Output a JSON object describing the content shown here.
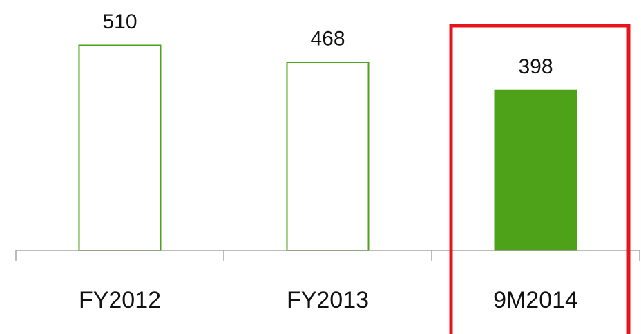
{
  "chart_data": {
    "type": "bar",
    "categories": [
      "FY2012",
      "FY2013",
      "9M2014"
    ],
    "values": [
      510,
      468,
      398
    ],
    "title": "",
    "xlabel": "",
    "ylabel": "",
    "ylim": [
      0,
      510
    ],
    "grid": false,
    "highlighted_category": "9M2014"
  },
  "colors": {
    "bar_outline": "#4ea21a",
    "bar_fill_highlight": "#4ea21a",
    "highlight_box": "#e8141b",
    "axis": "#a6a6a6",
    "text": "#111111"
  }
}
